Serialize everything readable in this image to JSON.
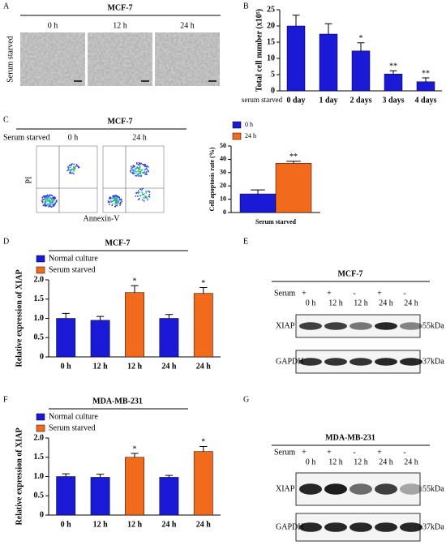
{
  "micrographs": {
    "label": "A",
    "title": "MCF-7",
    "row_label": "Serum starved",
    "columns": [
      "0 h",
      "12 h",
      "24 h"
    ]
  },
  "flow": {
    "label": "C",
    "title": "MCF-7",
    "row_label": "Serum starved",
    "columns": [
      "0 h",
      "24 h"
    ],
    "y_label": "PI",
    "x_label": "Annexin-V"
  },
  "chart_data": [
    {
      "type": "bar",
      "label": "B",
      "y_label": "Total cell number (x10⁵)",
      "x_label": "serum starved",
      "categories": [
        "0 day",
        "1 day",
        "2 days",
        "3 days",
        "4 days"
      ],
      "values": [
        20,
        17.5,
        12.3,
        5.2,
        2.8
      ],
      "errors": [
        3.3,
        3.2,
        2.5,
        1.0,
        1.2
      ],
      "significance": [
        null,
        null,
        "*",
        "**",
        "**"
      ],
      "color": "#1a1ad6",
      "ylim": [
        0,
        25
      ],
      "yticks": [
        0,
        5,
        10,
        15,
        20,
        25
      ]
    },
    {
      "type": "bar",
      "y_label": "Cell apoptosis rate (%)",
      "categories": [
        "Serum starved"
      ],
      "series": [
        {
          "name": "0 h",
          "color": "#1a1ad6",
          "values": [
            14
          ],
          "errors": [
            3
          ],
          "significance": [
            null
          ]
        },
        {
          "name": "24 h",
          "color": "#f26a1b",
          "values": [
            37
          ],
          "errors": [
            1.5
          ],
          "significance": [
            "**"
          ]
        }
      ],
      "ylim": [
        0,
        50
      ],
      "yticks": [
        0,
        10,
        20,
        30,
        40,
        50
      ]
    },
    {
      "type": "bar",
      "label": "D",
      "title": "MCF-7",
      "y_label": "Relative expression of XIAP",
      "categories": [
        "0 h",
        "12 h",
        "12 h",
        "24 h",
        "24 h"
      ],
      "series": [
        {
          "name": "Normal culture",
          "color": "#1a1ad6",
          "values": [
            1.0,
            0.95,
            null,
            1.0,
            null
          ],
          "errors": [
            0.13,
            0.1,
            null,
            0.1,
            null
          ],
          "significance": [
            null,
            null,
            null,
            null,
            null
          ]
        },
        {
          "name": "Serum starved",
          "color": "#f26a1b",
          "values": [
            null,
            null,
            1.67,
            null,
            1.65
          ],
          "errors": [
            null,
            null,
            0.18,
            null,
            0.15
          ],
          "significance": [
            null,
            null,
            "*",
            null,
            "*"
          ]
        }
      ],
      "ylim": [
        0,
        2
      ],
      "yticks": [
        0,
        {
          "value": 0.5,
          "label": "0.5"
        },
        {
          "value": 1,
          "label": "1.0"
        },
        {
          "value": 1.5,
          "label": "1.5"
        },
        {
          "value": 2,
          "label": "2.0"
        }
      ]
    },
    {
      "type": "bar",
      "label": "F",
      "title": "MDA-MB-231",
      "y_label": "Relative expression of XIAP",
      "categories": [
        "0 h",
        "12 h",
        "12 h",
        "24 h",
        "24 h"
      ],
      "series": [
        {
          "name": "Normal culture",
          "color": "#1a1ad6",
          "values": [
            1.0,
            0.98,
            null,
            0.98,
            null
          ],
          "errors": [
            0.07,
            0.08,
            null,
            0.05,
            null
          ],
          "significance": [
            null,
            null,
            null,
            null,
            null
          ]
        },
        {
          "name": "Serum starved",
          "color": "#f26a1b",
          "values": [
            null,
            null,
            1.5,
            null,
            1.65
          ],
          "errors": [
            null,
            null,
            0.1,
            null,
            0.13
          ],
          "significance": [
            null,
            null,
            "*",
            null,
            "*"
          ]
        }
      ],
      "ylim": [
        0,
        2
      ],
      "yticks": [
        0,
        {
          "value": 0.5,
          "label": "0.5"
        },
        {
          "value": 1,
          "label": "1.0"
        },
        {
          "value": 1.5,
          "label": "1.5"
        },
        {
          "value": 2,
          "label": "2.0"
        }
      ]
    }
  ],
  "blots": [
    {
      "label": "E",
      "title": "MCF-7",
      "serum_label": "Serum",
      "serum": [
        "+",
        "+",
        "-",
        "+",
        "-"
      ],
      "times": [
        "0 h",
        "12 h",
        "12 h",
        "24 h",
        "24 h"
      ],
      "rows": [
        {
          "name": "XIAP",
          "size": "55kDa"
        },
        {
          "name": "GAPDH",
          "size": "37kDa"
        }
      ]
    },
    {
      "label": "G",
      "title": "MDA-MB-231",
      "serum_label": "Serum",
      "serum": [
        "+",
        "+",
        "-",
        "+",
        "-"
      ],
      "times": [
        "0 h",
        "12 h",
        "12 h",
        "24 h",
        "24 h"
      ],
      "rows": [
        {
          "name": "XIAP",
          "size": "55kDa"
        },
        {
          "name": "GAPDH",
          "size": "37kDa"
        }
      ]
    }
  ]
}
